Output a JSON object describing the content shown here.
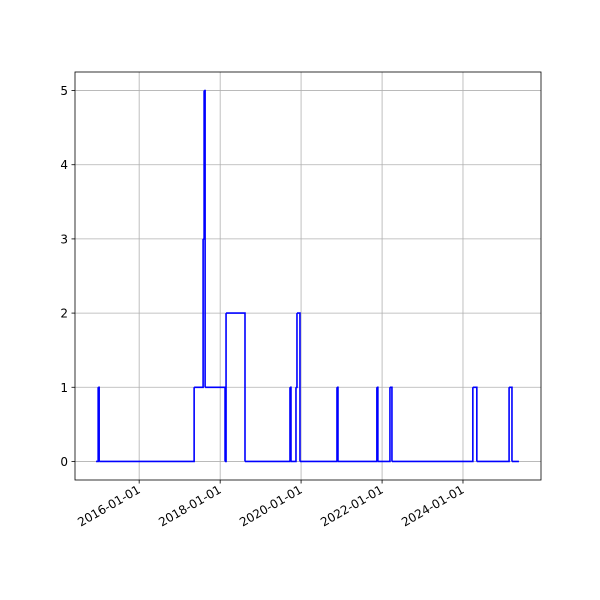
{
  "chart_data": {
    "type": "line",
    "step": "post",
    "color": "#0000ff",
    "grid": true,
    "x": [
      "2014-12-08",
      "2014-12-27",
      "2015-01-05",
      "2017-05-11",
      "2017-07-31",
      "2017-08-09",
      "2017-08-18",
      "2018-02-14",
      "2018-02-23",
      "2018-08-13",
      "2019-09-23",
      "2019-10-02",
      "2019-11-16",
      "2019-11-25",
      "2019-12-22",
      "2020-11-20",
      "2020-11-29",
      "2021-11-15",
      "2021-11-24",
      "2022-03-13",
      "2022-03-31",
      "2024-03-30",
      "2024-05-05",
      "2025-02-20",
      "2025-03-18",
      "2025-05-20"
    ],
    "values": [
      0,
      1,
      0,
      1,
      3,
      5,
      1,
      0,
      2,
      0,
      1,
      0,
      1,
      2,
      0,
      1,
      0,
      1,
      0,
      1,
      0,
      1,
      0,
      1,
      0,
      0
    ],
    "xlim": [
      "2014-06-01",
      "2025-12-05"
    ],
    "xticks": [
      "2016-01-01",
      "2018-01-01",
      "2020-01-01",
      "2022-01-01",
      "2024-01-01"
    ],
    "ylim": [
      -0.25,
      5.25
    ],
    "yticks": [
      0,
      1,
      2,
      3,
      4,
      5
    ]
  }
}
